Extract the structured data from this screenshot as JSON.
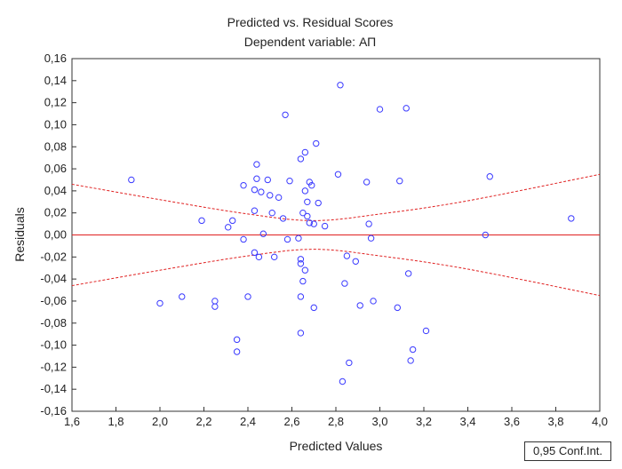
{
  "chart_data": {
    "type": "scatter",
    "title": "Predicted vs. Residual Scores",
    "subtitle": "Dependent variable: АП",
    "xlabel": "Predicted Values",
    "ylabel": "Residuals",
    "xlim": [
      1.6,
      4.0
    ],
    "ylim": [
      -0.16,
      0.16
    ],
    "x_ticks": [
      "1,6",
      "1,8",
      "2,0",
      "2,2",
      "2,4",
      "2,6",
      "2,8",
      "3,0",
      "3,2",
      "3,4",
      "3,6",
      "3,8",
      "4,0"
    ],
    "y_ticks": [
      "-0,16",
      "-0,14",
      "-0,12",
      "-0,10",
      "-0,08",
      "-0,06",
      "-0,04",
      "-0,02",
      "0,00",
      "0,02",
      "0,04",
      "0,06",
      "0,08",
      "0,10",
      "0,12",
      "0,14",
      "0,16"
    ],
    "grid": false,
    "legend": "0,95 Conf.Int.",
    "legend_position": "bottom-right",
    "colors": {
      "points": "#3a3aff",
      "fit_line": "#e02020",
      "conf_band": "#e02020"
    },
    "zero_line_y": 0.0,
    "confidence_band": {
      "x": [
        1.6,
        2.0,
        2.4,
        2.7,
        3.0,
        3.4,
        4.0
      ],
      "upper": [
        0.046,
        0.032,
        0.019,
        0.013,
        0.019,
        0.031,
        0.055
      ],
      "lower": [
        -0.046,
        -0.032,
        -0.019,
        -0.013,
        -0.019,
        -0.031,
        -0.055
      ]
    },
    "points": [
      {
        "x": 1.87,
        "y": 0.05
      },
      {
        "x": 2.0,
        "y": -0.062
      },
      {
        "x": 2.1,
        "y": -0.056
      },
      {
        "x": 2.19,
        "y": 0.013
      },
      {
        "x": 2.25,
        "y": -0.06
      },
      {
        "x": 2.25,
        "y": -0.065
      },
      {
        "x": 2.31,
        "y": 0.007
      },
      {
        "x": 2.33,
        "y": 0.013
      },
      {
        "x": 2.35,
        "y": -0.095
      },
      {
        "x": 2.35,
        "y": -0.106
      },
      {
        "x": 2.38,
        "y": 0.045
      },
      {
        "x": 2.38,
        "y": -0.004
      },
      {
        "x": 2.4,
        "y": -0.056
      },
      {
        "x": 2.43,
        "y": 0.022
      },
      {
        "x": 2.43,
        "y": 0.041
      },
      {
        "x": 2.43,
        "y": -0.016
      },
      {
        "x": 2.44,
        "y": 0.051
      },
      {
        "x": 2.44,
        "y": 0.064
      },
      {
        "x": 2.45,
        "y": -0.02
      },
      {
        "x": 2.46,
        "y": 0.039
      },
      {
        "x": 2.47,
        "y": 0.001
      },
      {
        "x": 2.49,
        "y": 0.05
      },
      {
        "x": 2.5,
        "y": 0.036
      },
      {
        "x": 2.51,
        "y": 0.02
      },
      {
        "x": 2.52,
        "y": -0.02
      },
      {
        "x": 2.54,
        "y": 0.034
      },
      {
        "x": 2.56,
        "y": 0.015
      },
      {
        "x": 2.57,
        "y": 0.109
      },
      {
        "x": 2.58,
        "y": -0.004
      },
      {
        "x": 2.59,
        "y": 0.049
      },
      {
        "x": 2.63,
        "y": -0.003
      },
      {
        "x": 2.64,
        "y": -0.022
      },
      {
        "x": 2.64,
        "y": -0.026
      },
      {
        "x": 2.64,
        "y": 0.069
      },
      {
        "x": 2.64,
        "y": -0.056
      },
      {
        "x": 2.64,
        "y": -0.089
      },
      {
        "x": 2.65,
        "y": 0.02
      },
      {
        "x": 2.65,
        "y": -0.042
      },
      {
        "x": 2.66,
        "y": -0.032
      },
      {
        "x": 2.66,
        "y": 0.075
      },
      {
        "x": 2.66,
        "y": 0.04
      },
      {
        "x": 2.67,
        "y": 0.017
      },
      {
        "x": 2.67,
        "y": 0.03
      },
      {
        "x": 2.68,
        "y": 0.048
      },
      {
        "x": 2.68,
        "y": 0.011
      },
      {
        "x": 2.69,
        "y": 0.045
      },
      {
        "x": 2.7,
        "y": 0.01
      },
      {
        "x": 2.7,
        "y": -0.066
      },
      {
        "x": 2.71,
        "y": 0.083
      },
      {
        "x": 2.72,
        "y": 0.029
      },
      {
        "x": 2.75,
        "y": 0.008
      },
      {
        "x": 2.81,
        "y": 0.055
      },
      {
        "x": 2.82,
        "y": 0.136
      },
      {
        "x": 2.83,
        "y": -0.133
      },
      {
        "x": 2.84,
        "y": -0.044
      },
      {
        "x": 2.85,
        "y": -0.019
      },
      {
        "x": 2.86,
        "y": -0.116
      },
      {
        "x": 2.89,
        "y": -0.024
      },
      {
        "x": 2.91,
        "y": -0.064
      },
      {
        "x": 2.94,
        "y": 0.048
      },
      {
        "x": 2.95,
        "y": 0.01
      },
      {
        "x": 2.96,
        "y": -0.003
      },
      {
        "x": 2.97,
        "y": -0.06
      },
      {
        "x": 3.0,
        "y": 0.114
      },
      {
        "x": 3.08,
        "y": -0.066
      },
      {
        "x": 3.09,
        "y": 0.049
      },
      {
        "x": 3.12,
        "y": 0.115
      },
      {
        "x": 3.13,
        "y": -0.035
      },
      {
        "x": 3.14,
        "y": -0.114
      },
      {
        "x": 3.15,
        "y": -0.104
      },
      {
        "x": 3.21,
        "y": -0.087
      },
      {
        "x": 3.48,
        "y": 0.0
      },
      {
        "x": 3.5,
        "y": 0.053
      },
      {
        "x": 3.87,
        "y": 0.015
      }
    ]
  }
}
